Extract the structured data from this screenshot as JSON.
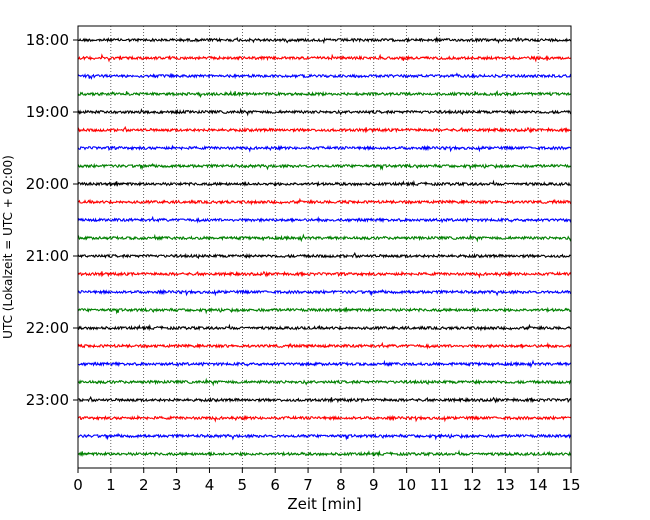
{
  "chart_data": {
    "type": "line",
    "description_kind": "helicorder / seismogram drum plot",
    "xlabel": "Zeit  [min]",
    "ylabel": "UTC (Lokalzeit = UTC + 02:00)",
    "xlim": [
      0,
      15
    ],
    "x_ticks": [
      0,
      1,
      2,
      3,
      4,
      5,
      6,
      7,
      8,
      9,
      10,
      11,
      12,
      13,
      14,
      15
    ],
    "x_tick_labels": [
      "0",
      "1",
      "2",
      "3",
      "4",
      "5",
      "6",
      "7",
      "8",
      "9",
      "10",
      "11",
      "12",
      "13",
      "14",
      "15"
    ],
    "y_tick_labels": [
      "18:00",
      "19:00",
      "20:00",
      "21:00",
      "22:00",
      "23:00"
    ],
    "grid": "vertical dotted lines at each minute",
    "trace_colors": [
      "#000000",
      "#ff0000",
      "#0000ff",
      "#008000"
    ],
    "trace_start_times": [
      "18:00",
      "18:15",
      "18:30",
      "18:45",
      "19:00",
      "19:15",
      "19:30",
      "19:45",
      "20:00",
      "20:15",
      "20:30",
      "20:45",
      "21:00",
      "21:15",
      "21:30",
      "21:45",
      "22:00",
      "22:15",
      "22:30",
      "22:45",
      "23:00",
      "23:15",
      "23:30",
      "23:45"
    ],
    "trace_minutes": 15
  }
}
